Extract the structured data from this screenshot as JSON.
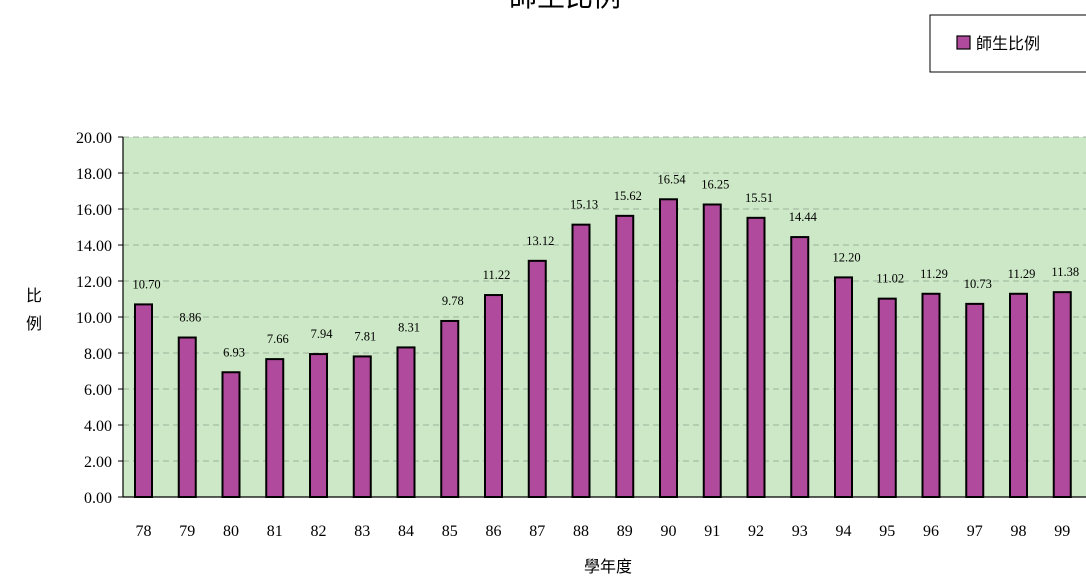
{
  "chart_data": {
    "type": "bar",
    "title": "師生比例",
    "xlabel": "學年度",
    "ylabel": "比例",
    "categories": [
      "78",
      "79",
      "80",
      "81",
      "82",
      "83",
      "84",
      "85",
      "86",
      "87",
      "88",
      "89",
      "90",
      "91",
      "92",
      "93",
      "94",
      "95",
      "96",
      "97",
      "98",
      "99"
    ],
    "series": [
      {
        "name": "師生比例",
        "values": [
          10.7,
          8.86,
          6.93,
          7.66,
          7.94,
          7.81,
          8.31,
          9.78,
          11.22,
          13.12,
          15.13,
          15.62,
          16.54,
          16.25,
          15.51,
          14.44,
          12.2,
          11.02,
          11.29,
          10.73,
          11.29,
          11.38
        ],
        "labels": [
          "10.70",
          "8.86",
          "6.93",
          "7.66",
          "7.94",
          "7.81",
          "8.31",
          "9.78",
          "11.22",
          "13.12",
          "15.13",
          "15.62",
          "16.54",
          "16.25",
          "15.51",
          "14.44",
          "12.20",
          "11.02",
          "11.29",
          "10.73",
          "11.29",
          "11.38"
        ]
      }
    ],
    "ylim": [
      0,
      20
    ],
    "yticks": [
      "0.00",
      "2.00",
      "4.00",
      "6.00",
      "8.00",
      "10.00",
      "12.00",
      "14.00",
      "16.00",
      "18.00",
      "20.00"
    ],
    "grid": true,
    "legend_position": "top-right",
    "colors": {
      "bar_fill": "#B04A9C",
      "bar_stroke": "#000000",
      "plot_background": "#CCE8C6",
      "gridline": "#8C9C8A"
    }
  }
}
